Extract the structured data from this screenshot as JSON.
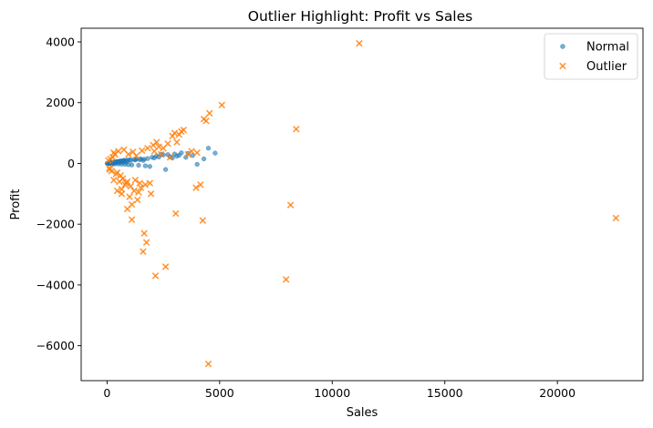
{
  "chart_data": {
    "type": "scatter",
    "title": "Outlier Highlight: Profit vs Sales",
    "xlabel": "Sales",
    "ylabel": "Profit",
    "xlim": [
      -1150,
      23800
    ],
    "ylim": [
      -7150,
      4450
    ],
    "xticks": [
      0,
      5000,
      10000,
      15000,
      20000
    ],
    "xtick_labels": [
      "0",
      "5000",
      "10000",
      "15000",
      "20000"
    ],
    "yticks": [
      -6000,
      -4000,
      -2000,
      0,
      2000,
      4000
    ],
    "ytick_labels": [
      "−6000",
      "−4000",
      "−2000",
      "0",
      "2000",
      "4000"
    ],
    "grid": false,
    "legend_position": "top-right",
    "series": [
      {
        "name": "Normal",
        "marker": "circle",
        "color": "#1f77b4",
        "x": [
          5,
          15,
          25,
          40,
          60,
          80,
          100,
          120,
          150,
          180,
          200,
          230,
          260,
          300,
          350,
          400,
          450,
          500,
          550,
          600,
          650,
          700,
          750,
          800,
          900,
          1000,
          1100,
          1200,
          1300,
          1400,
          1500,
          1600,
          1700,
          1800,
          2000,
          2200,
          2400,
          2500,
          2600,
          2800,
          3000,
          3100,
          3300,
          3500,
          3800,
          4000,
          4300,
          4500,
          4800,
          50,
          110,
          170,
          240,
          320,
          420,
          520,
          620,
          720,
          820,
          950,
          1050,
          1250,
          1450,
          1650,
          1900,
          2100,
          2300,
          2700,
          2900,
          3200,
          3600,
          30,
          70,
          130,
          190,
          280,
          380,
          480,
          580,
          680,
          780,
          880
        ],
        "y": [
          2,
          5,
          -3,
          8,
          10,
          -5,
          15,
          20,
          -8,
          25,
          30,
          -12,
          35,
          40,
          -15,
          50,
          60,
          -20,
          70,
          80,
          -25,
          90,
          100,
          -30,
          110,
          120,
          -50,
          130,
          140,
          -60,
          150,
          100,
          -80,
          160,
          200,
          250,
          300,
          280,
          -200,
          220,
          310,
          240,
          350,
          200,
          260,
          -30,
          150,
          500,
          340,
          12,
          18,
          22,
          -10,
          45,
          55,
          65,
          75,
          85,
          95,
          -40,
          105,
          115,
          125,
          135,
          -100,
          180,
          210,
          290,
          180,
          270,
          330,
          4,
          9,
          14,
          19,
          -6,
          28,
          33,
          38,
          43,
          48,
          53
        ]
      },
      {
        "name": "Outlier",
        "marker": "x",
        "color": "#ff7f0e",
        "x": [
          11200,
          22600,
          8400,
          8150,
          7950,
          4500,
          5100,
          4300,
          4250,
          4400,
          4550,
          3300,
          3050,
          2600,
          2150,
          1650,
          1950,
          1750,
          1100,
          900,
          550,
          650,
          2900,
          3950,
          4150,
          3750,
          2200,
          2500,
          1500,
          1350,
          1200,
          1000,
          800,
          700,
          600,
          450,
          350,
          250,
          150,
          120,
          300,
          500,
          750,
          950,
          1150,
          1300,
          1550,
          1800,
          2050,
          2300,
          2700,
          3100,
          3400,
          400,
          200,
          100,
          60,
          850,
          1050,
          1250,
          1400,
          1700,
          1900,
          2100,
          2400,
          2800,
          3000,
          3200,
          3600,
          4000,
          1600,
          1450,
          1100,
          900,
          650,
          450,
          300
        ],
        "y": [
          3950,
          -1800,
          1130,
          -1370,
          -3820,
          -6600,
          1920,
          1460,
          -1880,
          1400,
          1650,
          1050,
          -1650,
          -3400,
          -3700,
          -2300,
          -1000,
          -2600,
          -1850,
          -1500,
          -600,
          -1000,
          900,
          -800,
          -700,
          400,
          700,
          500,
          -800,
          -1200,
          -900,
          -1100,
          -700,
          -500,
          -400,
          -300,
          300,
          200,
          150,
          -200,
          350,
          400,
          450,
          300,
          380,
          250,
          420,
          500,
          600,
          550,
          650,
          700,
          1100,
          -350,
          -250,
          -150,
          100,
          -650,
          -750,
          -550,
          -950,
          -700,
          -650,
          400,
          300,
          200,
          1000,
          950,
          300,
          350,
          -2900,
          -650,
          -1350,
          -600,
          -850,
          -900,
          -550
        ]
      }
    ]
  }
}
